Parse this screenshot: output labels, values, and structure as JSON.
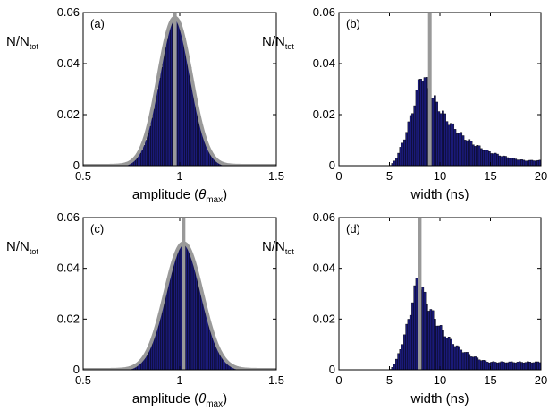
{
  "chart_data": [
    {
      "panel_label": "(a)",
      "type": "bar",
      "ylabel": "N/N",
      "ylabel_sub": "tot",
      "xlabel_main": "amplitude (",
      "xlabel_theta": "θ",
      "xlabel_sub": "max",
      "xlabel_close": ")",
      "xlim": [
        0.5,
        1.5
      ],
      "ylim": [
        0,
        0.06
      ],
      "xticks": [
        "0.5",
        "1",
        "1.5"
      ],
      "yticks": [
        "0",
        "0.02",
        "0.04",
        "0.06"
      ],
      "histogram": {
        "kind": "gaussian",
        "mean": 0.98,
        "sd": 0.083,
        "peak": 0.058,
        "bin_start": 0.7,
        "bin_end": 1.3,
        "bin_width": 0.01
      },
      "fit_curve": {
        "mean": 0.975,
        "sd": 0.085,
        "peak": 0.058
      },
      "vertical_line_x": 0.975,
      "colors": {
        "bar": "#1a1a78",
        "bar_edge": "#000000",
        "fit": "#999999"
      }
    },
    {
      "panel_label": "(b)",
      "type": "bar",
      "ylabel": "N/N",
      "ylabel_sub": "tot",
      "xlabel_main": "width (ns)",
      "xlim": [
        0,
        20
      ],
      "ylim": [
        0,
        0.06
      ],
      "xticks": [
        "0",
        "5",
        "10",
        "15",
        "20"
      ],
      "yticks": [
        "0",
        "0.02",
        "0.04",
        "0.06"
      ],
      "histogram": {
        "kind": "skewed",
        "bin_start": 5.0,
        "bin_end": 20,
        "bin_width": 0.2,
        "rise_start": 5.0,
        "peak_x": 8.2,
        "peak": 0.037,
        "tau": 3.5,
        "tail_floor": 0.002
      },
      "vertical_line_x": 9.0,
      "colors": {
        "bar": "#1a1a78",
        "bar_edge": "#000000",
        "fit": "#999999"
      }
    },
    {
      "panel_label": "(c)",
      "type": "bar",
      "ylabel": "N/N",
      "ylabel_sub": "tot",
      "xlabel_main": "amplitude (",
      "xlabel_theta": "θ",
      "xlabel_sub": "max",
      "xlabel_close": ")",
      "xlim": [
        0.5,
        1.5
      ],
      "ylim": [
        0,
        0.06
      ],
      "xticks": [
        "0.5",
        "1",
        "1.5"
      ],
      "yticks": [
        "0",
        "0.02",
        "0.04",
        "0.06"
      ],
      "histogram": {
        "kind": "gaussian",
        "mean": 1.02,
        "sd": 0.096,
        "peak": 0.05,
        "bin_start": 0.7,
        "bin_end": 1.35,
        "bin_width": 0.01
      },
      "fit_curve": {
        "mean": 1.02,
        "sd": 0.096,
        "peak": 0.05
      },
      "vertical_line_x": 1.02,
      "colors": {
        "bar": "#1a1a78",
        "bar_edge": "#000000",
        "fit": "#999999"
      }
    },
    {
      "panel_label": "(d)",
      "type": "bar",
      "ylabel": "N/N",
      "ylabel_sub": "tot",
      "xlabel_main": "width (ns)",
      "xlim": [
        0,
        20
      ],
      "ylim": [
        0,
        0.06
      ],
      "xticks": [
        "0",
        "5",
        "10",
        "15",
        "20"
      ],
      "yticks": [
        "0",
        "0.02",
        "0.04",
        "0.06"
      ],
      "histogram": {
        "kind": "skewed",
        "bin_start": 5.0,
        "bin_end": 20,
        "bin_width": 0.2,
        "rise_start": 5.0,
        "peak_x": 7.8,
        "peak": 0.037,
        "tau": 2.8,
        "tail_floor": 0.003
      },
      "vertical_line_x": 8.0,
      "colors": {
        "bar": "#1a1a78",
        "bar_edge": "#000000",
        "fit": "#999999"
      }
    }
  ]
}
